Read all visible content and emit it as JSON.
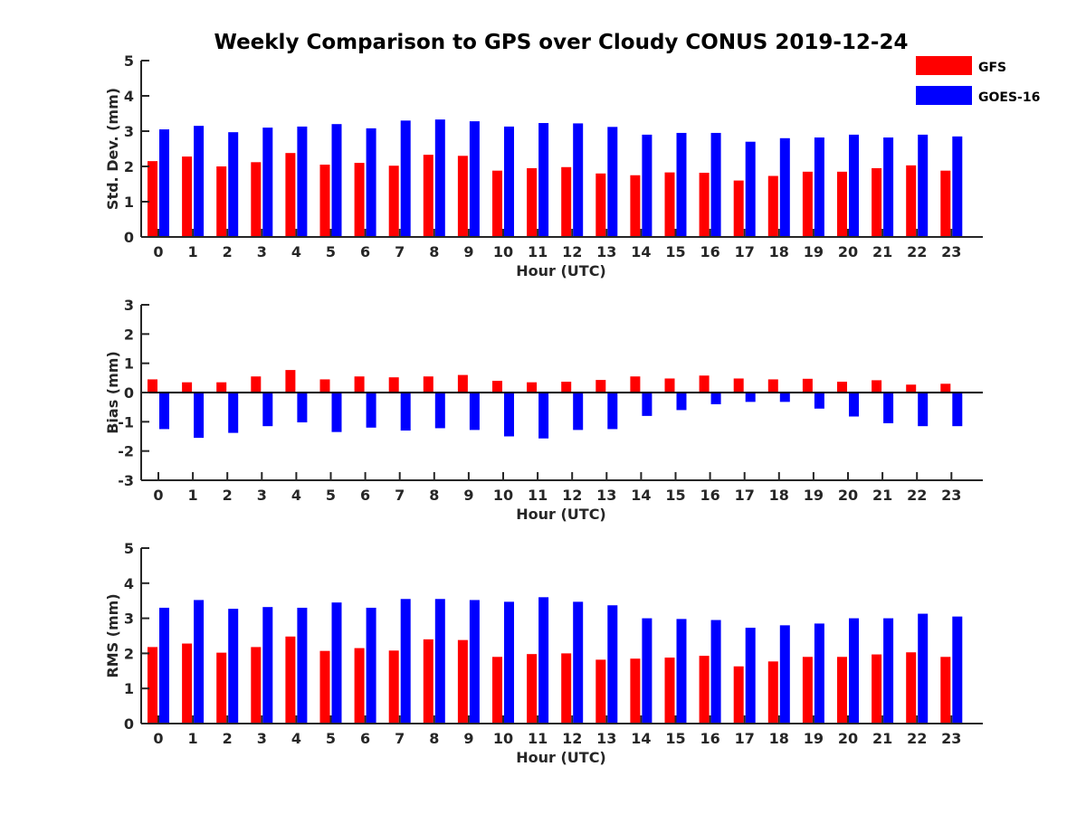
{
  "title": "Weekly Comparison to GPS over Cloudy CONUS 2019-12-24",
  "colors": {
    "GFS": "#ff0000",
    "GOES-16": "#0000ff",
    "axis": "#262626"
  },
  "legend": {
    "placement": "top-right",
    "entries": [
      "GFS",
      "GOES-16"
    ]
  },
  "chart_data": [
    {
      "type": "bar",
      "xlabel": "Hour (UTC)",
      "ylabel": "Std. Dev. (mm)",
      "ylim": [
        0,
        5
      ],
      "yticks": [
        0,
        1,
        2,
        3,
        4,
        5
      ],
      "grid": false,
      "categories": [
        "0",
        "1",
        "2",
        "3",
        "4",
        "5",
        "6",
        "7",
        "8",
        "9",
        "10",
        "11",
        "12",
        "13",
        "14",
        "15",
        "16",
        "17",
        "18",
        "19",
        "20",
        "21",
        "22",
        "23"
      ],
      "series": [
        {
          "name": "GFS",
          "color": "#ff0000",
          "values": [
            2.15,
            2.28,
            2.0,
            2.12,
            2.38,
            2.05,
            2.1,
            2.02,
            2.33,
            2.3,
            1.88,
            1.95,
            1.98,
            1.8,
            1.75,
            1.83,
            1.82,
            1.6,
            1.73,
            1.85,
            1.85,
            1.95,
            2.03,
            1.88
          ]
        },
        {
          "name": "GOES-16",
          "color": "#0000ff",
          "values": [
            3.05,
            3.15,
            2.97,
            3.1,
            3.13,
            3.2,
            3.08,
            3.3,
            3.33,
            3.28,
            3.13,
            3.23,
            3.22,
            3.12,
            2.9,
            2.95,
            2.95,
            2.7,
            2.8,
            2.82,
            2.9,
            2.82,
            2.9,
            2.85
          ]
        }
      ]
    },
    {
      "type": "bar",
      "xlabel": "Hour (UTC)",
      "ylabel": "Bias (mm)",
      "ylim": [
        -3,
        3
      ],
      "yticks": [
        -3,
        -2,
        -1,
        0,
        1,
        2,
        3
      ],
      "grid": false,
      "categories": [
        "0",
        "1",
        "2",
        "3",
        "4",
        "5",
        "6",
        "7",
        "8",
        "9",
        "10",
        "11",
        "12",
        "13",
        "14",
        "15",
        "16",
        "17",
        "18",
        "19",
        "20",
        "21",
        "22",
        "23"
      ],
      "series": [
        {
          "name": "GFS",
          "color": "#ff0000",
          "values": [
            0.45,
            0.35,
            0.35,
            0.55,
            0.77,
            0.45,
            0.55,
            0.52,
            0.55,
            0.6,
            0.4,
            0.35,
            0.37,
            0.43,
            0.55,
            0.48,
            0.58,
            0.48,
            0.45,
            0.47,
            0.37,
            0.42,
            0.27,
            0.3
          ]
        },
        {
          "name": "GOES-16",
          "color": "#0000ff",
          "values": [
            -1.25,
            -1.55,
            -1.38,
            -1.15,
            -1.02,
            -1.35,
            -1.2,
            -1.3,
            -1.22,
            -1.28,
            -1.5,
            -1.57,
            -1.28,
            -1.25,
            -0.8,
            -0.6,
            -0.4,
            -0.32,
            -0.32,
            -0.55,
            -0.82,
            -1.05,
            -1.15,
            -1.15
          ]
        }
      ]
    },
    {
      "type": "bar",
      "xlabel": "Hour (UTC)",
      "ylabel": "RMS (mm)",
      "ylim": [
        0,
        5
      ],
      "yticks": [
        0,
        1,
        2,
        3,
        4,
        5
      ],
      "grid": false,
      "categories": [
        "0",
        "1",
        "2",
        "3",
        "4",
        "5",
        "6",
        "7",
        "8",
        "9",
        "10",
        "11",
        "12",
        "13",
        "14",
        "15",
        "16",
        "17",
        "18",
        "19",
        "20",
        "21",
        "22",
        "23"
      ],
      "series": [
        {
          "name": "GFS",
          "color": "#ff0000",
          "values": [
            2.18,
            2.28,
            2.02,
            2.18,
            2.48,
            2.07,
            2.15,
            2.08,
            2.4,
            2.38,
            1.9,
            1.98,
            2.0,
            1.82,
            1.85,
            1.88,
            1.93,
            1.63,
            1.77,
            1.9,
            1.9,
            1.97,
            2.03,
            1.9
          ]
        },
        {
          "name": "GOES-16",
          "color": "#0000ff",
          "values": [
            3.3,
            3.52,
            3.27,
            3.32,
            3.3,
            3.45,
            3.3,
            3.55,
            3.55,
            3.52,
            3.47,
            3.6,
            3.47,
            3.37,
            3.0,
            2.98,
            2.95,
            2.73,
            2.8,
            2.85,
            3.0,
            3.0,
            3.13,
            3.05
          ]
        }
      ]
    }
  ]
}
